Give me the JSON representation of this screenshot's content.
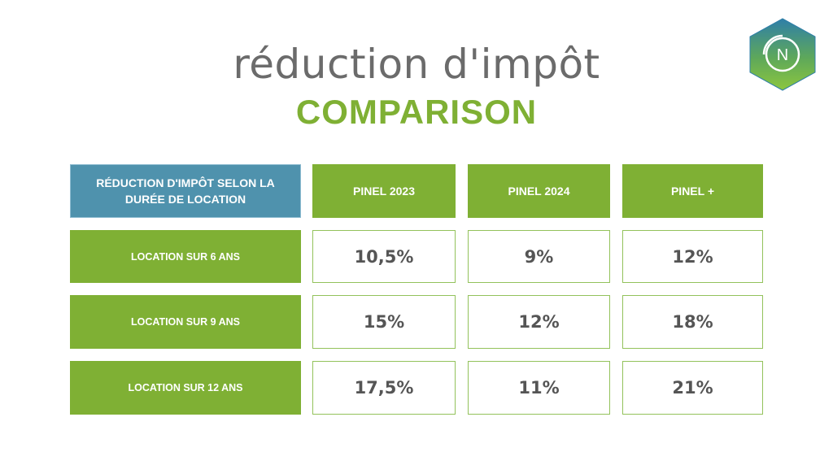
{
  "header": {
    "title": "réduction d'impôt",
    "subtitle": "COMPARISON"
  },
  "logo": {
    "icon": "hexagon-nc-logo",
    "letter": "N"
  },
  "colors": {
    "green": "#7fb034",
    "blue": "#4f92ad",
    "text_gray": "#6b6b6b"
  },
  "table": {
    "corner_header": "RÉDUCTION D'IMPÔT SELON LA DURÉE DE LOCATION",
    "columns": [
      "PINEL 2023",
      "PINEL 2024",
      "PINEL +"
    ],
    "rows": [
      {
        "label": "LOCATION SUR 6 ANS",
        "values": [
          "10,5%",
          "9%",
          "12%"
        ]
      },
      {
        "label": "LOCATION SUR 9 ANS",
        "values": [
          "15%",
          "12%",
          "18%"
        ]
      },
      {
        "label": "LOCATION SUR 12 ANS",
        "values": [
          "17,5%",
          "11%",
          "21%"
        ]
      }
    ]
  }
}
